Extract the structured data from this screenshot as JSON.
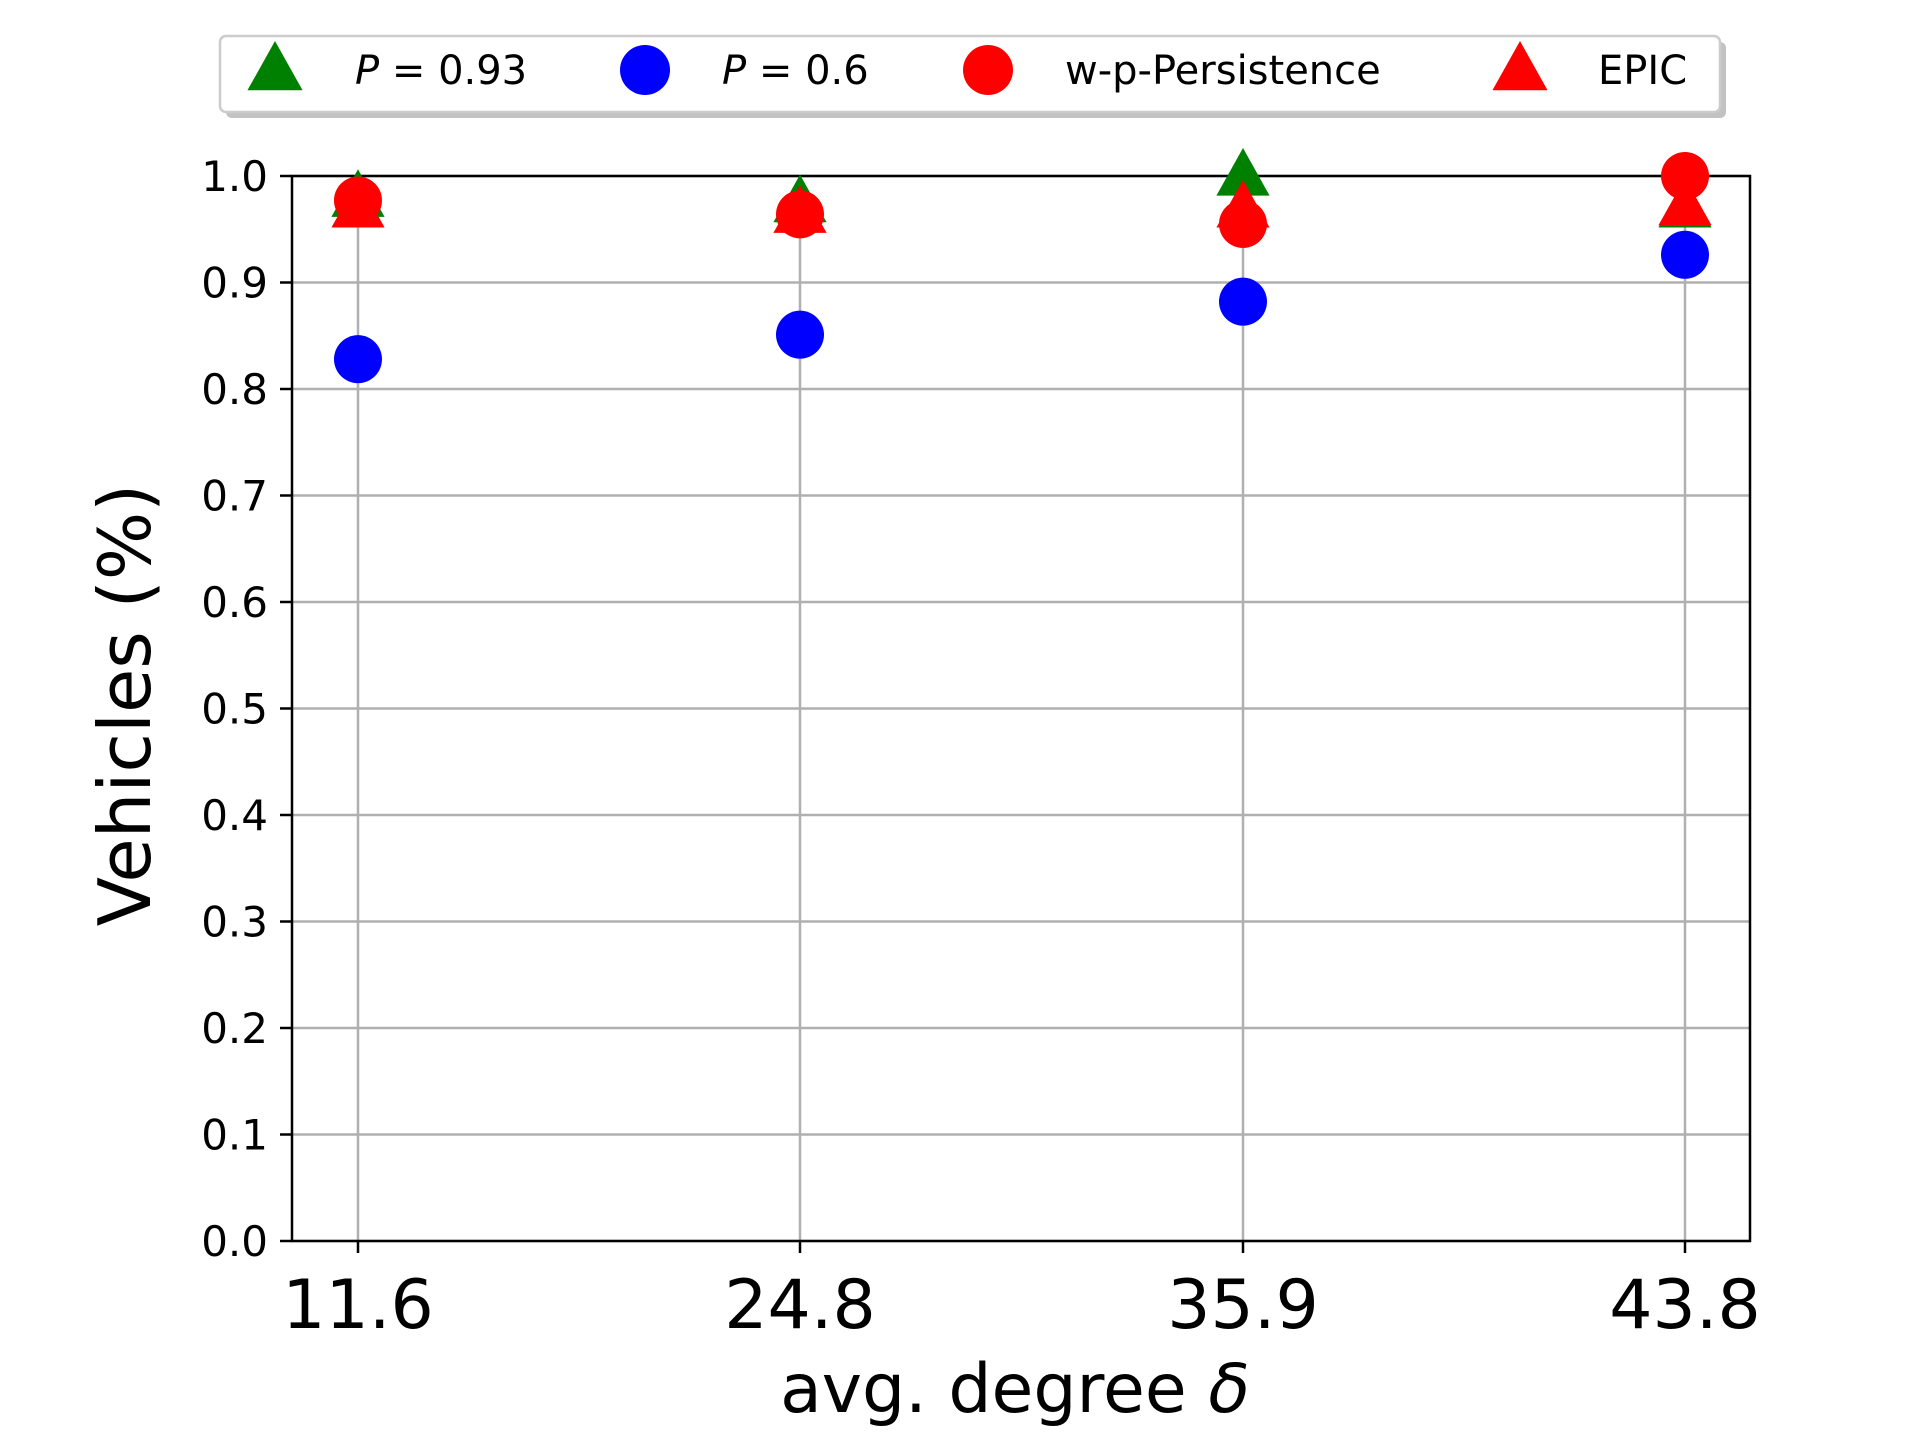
{
  "chart_data": {
    "type": "scatter",
    "title": "",
    "xlabel_prefix": "avg. degree ",
    "xlabel_symbol": "δ",
    "ylabel": "Vehicles (%)",
    "categories": [
      "11.6",
      "24.8",
      "35.9",
      "43.8"
    ],
    "ylim": [
      0,
      1.0
    ],
    "yticks": [
      "0.0",
      "0.1",
      "0.2",
      "0.3",
      "0.4",
      "0.5",
      "0.6",
      "0.7",
      "0.8",
      "0.9",
      "1.0"
    ],
    "grid": true,
    "legend_position": "top-center",
    "series": [
      {
        "name": "P = 0.93",
        "name_italic": "P",
        "name_rest": " = 0.93",
        "marker": "triangle",
        "color": "#008000",
        "values": [
          0.98,
          0.975,
          1.0,
          0.97
        ]
      },
      {
        "name": "P = 0.6",
        "name_italic": "P",
        "name_rest": " = 0.6",
        "marker": "circle",
        "color": "#0000ff",
        "values": [
          0.828,
          0.851,
          0.882,
          0.926
        ]
      },
      {
        "name": "w-p-Persistence",
        "marker": "circle",
        "color": "#ff0000",
        "values": [
          0.977,
          0.964,
          0.955,
          1.0
        ]
      },
      {
        "name": "EPIC",
        "marker": "triangle",
        "color": "#ff0000",
        "values": [
          0.97,
          0.965,
          0.97,
          0.972
        ]
      }
    ]
  }
}
